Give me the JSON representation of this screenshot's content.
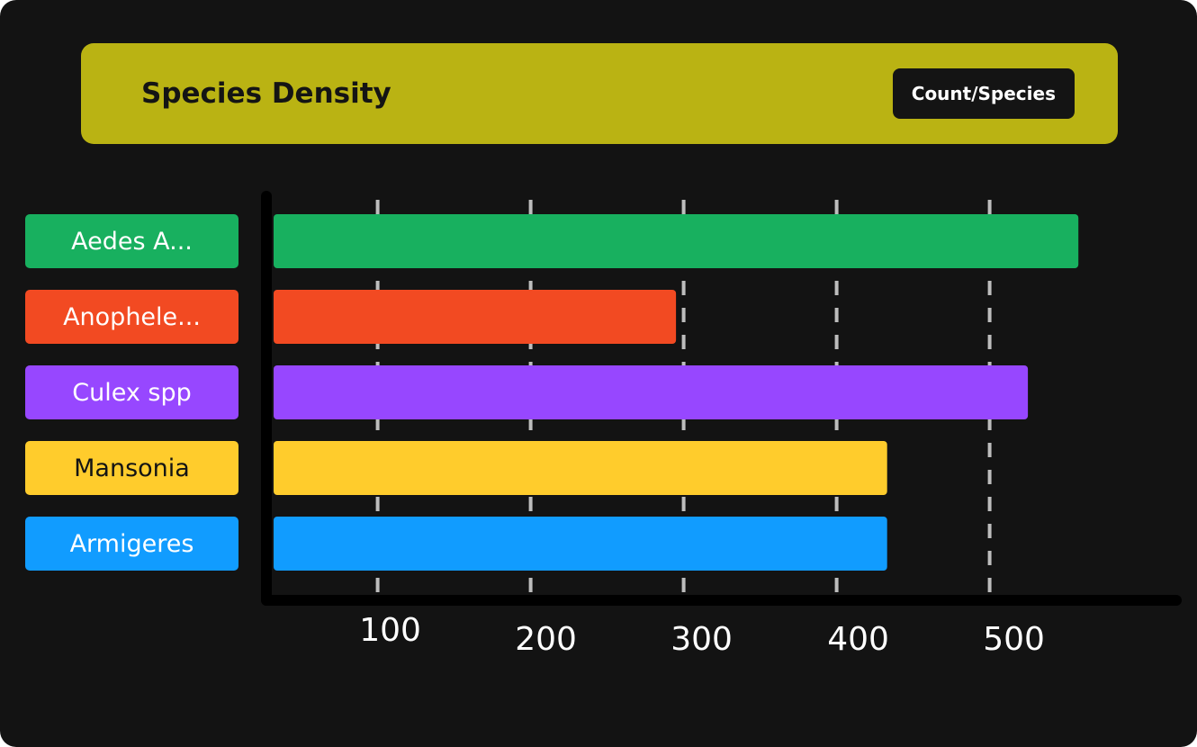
{
  "colors": {
    "background": "#131313",
    "header": "#bab313",
    "axis": "#000000",
    "gridline": "#bdbdbd"
  },
  "chart_data": {
    "type": "bar",
    "orientation": "horizontal",
    "title": "Species Density",
    "unit_badge": "Count/Species",
    "categories": [
      "Aedes A...",
      "Anophele...",
      "Culex spp",
      "Mansonia",
      "Armigeres"
    ],
    "values": [
      558,
      295,
      525,
      433,
      433
    ],
    "bar_colors": [
      "#18b05f",
      "#f24a22",
      "#9747ff",
      "#ffcc2c",
      "#119cff"
    ],
    "label_text_colors": [
      "#ffffff",
      "#ffffff",
      "#ffffff",
      "#141414",
      "#ffffff"
    ],
    "x_ticks": [
      100,
      200,
      300,
      400,
      500
    ],
    "x_tick_labels": [
      "100",
      "200",
      "300",
      "400",
      "500"
    ],
    "xlim": [
      32,
      628
    ],
    "grid": "vertical dashed",
    "legend": "none"
  }
}
